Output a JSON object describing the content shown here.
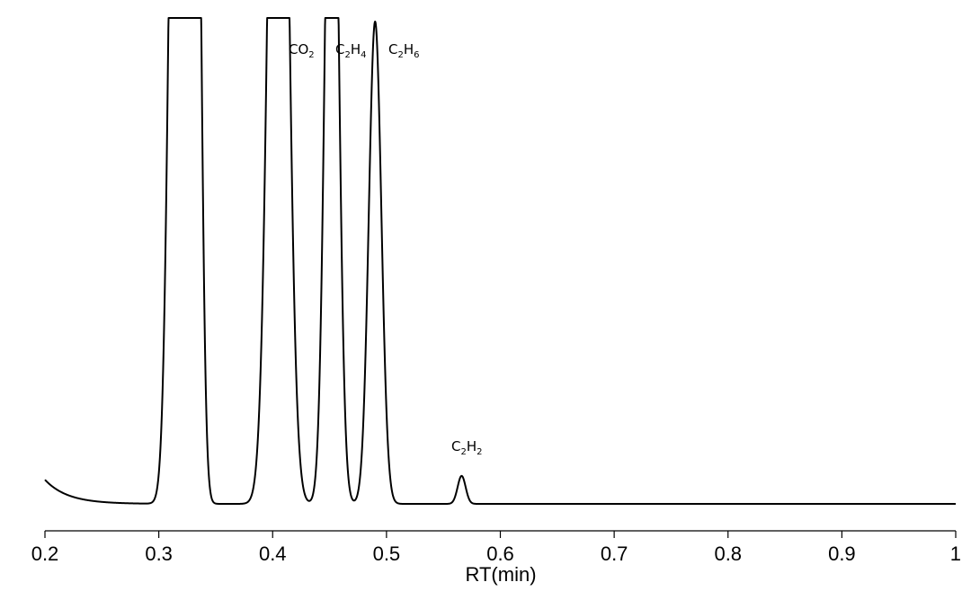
{
  "chart_data": {
    "type": "line",
    "title": "",
    "xlabel": "RT(min)",
    "ylabel": "",
    "xlim": [
      0.2,
      1.0
    ],
    "xticks": [
      "0.2",
      "0.3",
      "0.4",
      "0.5",
      "0.6",
      "0.7",
      "0.8",
      "0.9",
      "1"
    ],
    "ylim": [
      0,
      1.0
    ],
    "y_axis_visible": false,
    "grid": false,
    "legend": "none",
    "baseline": {
      "start_level": 0.05,
      "end_level": 0.0,
      "decay_tau_min": 0.02
    },
    "series": [
      {
        "peaks": [
          {
            "rt": 0.316,
            "height": 2.2,
            "width": 0.006,
            "label": ""
          },
          {
            "rt": 0.332,
            "height": 2.0,
            "width": 0.0045,
            "label": ""
          },
          {
            "rt": 0.405,
            "height": 2.4,
            "width": 0.0075,
            "label": "CO2"
          },
          {
            "rt": 0.452,
            "height": 1.8,
            "width": 0.0055,
            "label": "C2H4"
          },
          {
            "rt": 0.49,
            "height": 1.0,
            "width": 0.0055,
            "label": "C2H6"
          },
          {
            "rt": 0.566,
            "height": 0.058,
            "width": 0.0035,
            "label": "C2H2"
          }
        ]
      }
    ],
    "annotations": [
      {
        "id": "co2",
        "base": "CO",
        "sub": "2",
        "prefix": "",
        "prefix_sub": ""
      },
      {
        "id": "c2h4",
        "base": "H",
        "sub": "4",
        "prefix": "C",
        "prefix_sub": "2"
      },
      {
        "id": "c2h6",
        "base": "H",
        "sub": "6",
        "prefix": "C",
        "prefix_sub": "2"
      },
      {
        "id": "c2h2",
        "base": "H",
        "sub": "2",
        "prefix": "C",
        "prefix_sub": "2"
      }
    ],
    "colors": {
      "line": "#000000",
      "axis": "#000000"
    }
  }
}
